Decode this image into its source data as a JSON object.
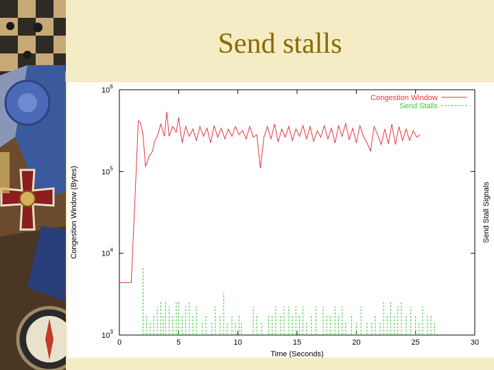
{
  "slide": {
    "title": "Send stalls"
  },
  "colors": {
    "background": "#f4ecc4",
    "title": "#8a6a00",
    "cwnd": "#e8353b",
    "stalls": "#33cc33"
  },
  "sidebar": {
    "decor": "vintage-medals-and-compass-photo"
  },
  "chart_data": {
    "type": "line",
    "xlabel": "Time (Seconds)",
    "ylabel": "Congestion Window (Bytes)",
    "y2label": "Send Stall Signals",
    "xlim": [
      0,
      30
    ],
    "ylim_log10": [
      3,
      6
    ],
    "y_scale": "log",
    "grid": false,
    "legend_position": "top-right",
    "x_ticks": [
      "0",
      "5",
      "10",
      "15",
      "20",
      "25",
      "30"
    ],
    "y_ticks": [
      {
        "base": "10",
        "exp": "3"
      },
      {
        "base": "10",
        "exp": "4"
      },
      {
        "base": "10",
        "exp": "5"
      },
      {
        "base": "10",
        "exp": "6"
      }
    ],
    "series": [
      {
        "name": "Congestion Window",
        "style": "solid",
        "x": [
          0,
          0.5,
          0.8,
          1.0,
          1.3,
          1.6,
          1.8,
          2.0,
          2.2,
          2.5,
          2.8,
          3.0,
          3.2,
          3.5,
          3.8,
          4.0,
          4.2,
          4.5,
          4.8,
          5.0,
          5.3,
          5.6,
          5.9,
          6.2,
          6.5,
          6.8,
          7.1,
          7.4,
          7.7,
          8.0,
          8.3,
          8.6,
          8.9,
          9.2,
          9.5,
          9.8,
          10.1,
          10.4,
          10.7,
          11.0,
          11.3,
          11.6,
          11.9,
          12.2,
          12.5,
          12.8,
          13.1,
          13.4,
          13.7,
          14.0,
          14.3,
          14.6,
          14.9,
          15.2,
          15.5,
          15.8,
          16.1,
          16.4,
          16.7,
          17.0,
          17.3,
          17.6,
          17.9,
          18.2,
          18.5,
          18.8,
          19.1,
          19.4,
          19.7,
          20.0,
          20.3,
          20.6,
          20.9,
          21.2,
          21.5,
          21.8,
          22.1,
          22.4,
          22.7,
          23.0,
          23.3,
          23.6,
          23.9,
          24.2,
          24.5,
          24.8,
          25.1,
          25.4
        ],
        "y_log10": [
          3.64,
          3.64,
          3.64,
          3.64,
          4.6,
          5.62,
          5.59,
          5.45,
          5.06,
          5.18,
          5.25,
          5.38,
          5.43,
          5.58,
          5.43,
          5.73,
          5.43,
          5.55,
          5.48,
          5.66,
          5.35,
          5.55,
          5.43,
          5.52,
          5.38,
          5.55,
          5.43,
          5.53,
          5.35,
          5.56,
          5.42,
          5.53,
          5.4,
          5.52,
          5.43,
          5.55,
          5.45,
          5.5,
          5.4,
          5.55,
          5.42,
          5.45,
          5.04,
          5.42,
          5.55,
          5.4,
          5.58,
          5.36,
          5.52,
          5.42,
          5.55,
          5.38,
          5.52,
          5.43,
          5.56,
          5.4,
          5.55,
          5.37,
          5.5,
          5.42,
          5.56,
          5.4,
          5.53,
          5.35,
          5.56,
          5.43,
          5.59,
          5.39,
          5.53,
          5.35,
          5.56,
          5.43,
          5.35,
          5.25,
          5.55,
          5.45,
          5.33,
          5.52,
          5.34,
          5.58,
          5.33,
          5.55,
          5.38,
          5.52,
          5.38,
          5.5,
          5.42,
          5.45
        ]
      },
      {
        "name": "Send Stalls",
        "style": "dashed-impulses",
        "x": [
          2.0,
          2.3,
          2.6,
          2.9,
          3.2,
          3.5,
          3.7,
          3.9,
          4.2,
          4.5,
          4.8,
          5.0,
          5.3,
          5.6,
          5.9,
          6.2,
          6.5,
          7.0,
          7.3,
          7.8,
          8.1,
          8.5,
          8.8,
          9.1,
          9.5,
          9.8,
          10.1,
          10.3,
          11.3,
          11.6,
          12.0,
          12.6,
          12.9,
          13.2,
          13.6,
          13.9,
          14.3,
          14.6,
          14.9,
          15.2,
          15.5,
          15.8,
          16.2,
          16.6,
          17.2,
          17.5,
          17.8,
          18.2,
          18.5,
          18.8,
          19.1,
          19.6,
          20.0,
          20.4,
          20.9,
          21.3,
          21.6,
          22.0,
          22.3,
          22.6,
          22.9,
          23.2,
          23.5,
          23.8,
          24.2,
          24.6,
          25.0,
          25.3,
          25.6,
          26.0,
          26.3,
          26.6
        ],
        "y_log10": [
          3.83,
          3.25,
          3.15,
          3.25,
          3.35,
          3.42,
          3.25,
          3.42,
          3.35,
          3.25,
          3.42,
          3.42,
          3.25,
          3.35,
          3.42,
          3.25,
          3.35,
          3.15,
          3.25,
          3.15,
          3.35,
          3.25,
          3.52,
          3.15,
          3.25,
          3.15,
          3.25,
          3.15,
          3.35,
          3.25,
          3.15,
          3.25,
          3.25,
          3.35,
          3.25,
          3.35,
          3.35,
          3.25,
          3.35,
          3.25,
          3.35,
          3.15,
          3.25,
          3.35,
          3.35,
          3.25,
          3.25,
          3.35,
          3.25,
          3.35,
          3.15,
          3.25,
          3.15,
          3.35,
          3.15,
          3.15,
          3.25,
          3.15,
          3.42,
          3.25,
          3.42,
          3.25,
          3.35,
          3.42,
          3.25,
          3.35,
          3.25,
          3.15,
          3.35,
          3.25,
          3.25,
          3.15
        ]
      }
    ]
  }
}
